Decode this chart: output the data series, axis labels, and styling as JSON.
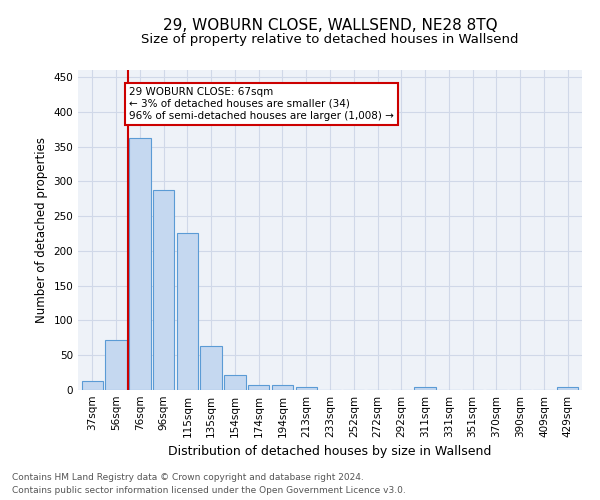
{
  "title": "29, WOBURN CLOSE, WALLSEND, NE28 8TQ",
  "subtitle": "Size of property relative to detached houses in Wallsend",
  "xlabel": "Distribution of detached houses by size in Wallsend",
  "ylabel": "Number of detached properties",
  "footnote1": "Contains HM Land Registry data © Crown copyright and database right 2024.",
  "footnote2": "Contains public sector information licensed under the Open Government Licence v3.0.",
  "bar_labels": [
    "37sqm",
    "56sqm",
    "76sqm",
    "96sqm",
    "115sqm",
    "135sqm",
    "154sqm",
    "174sqm",
    "194sqm",
    "213sqm",
    "233sqm",
    "252sqm",
    "272sqm",
    "292sqm",
    "311sqm",
    "331sqm",
    "351sqm",
    "370sqm",
    "390sqm",
    "409sqm",
    "429sqm"
  ],
  "bar_values": [
    13,
    72,
    362,
    287,
    225,
    63,
    22,
    7,
    7,
    5,
    0,
    0,
    0,
    0,
    5,
    0,
    0,
    0,
    0,
    0,
    5
  ],
  "bar_color": "#c5d8f0",
  "bar_edge_color": "#5b9bd5",
  "vline_color": "#cc0000",
  "annotation_text": "29 WOBURN CLOSE: 67sqm\n← 3% of detached houses are smaller (34)\n96% of semi-detached houses are larger (1,008) →",
  "annotation_box_color": "#ffffff",
  "annotation_box_edge": "#cc0000",
  "ylim": [
    0,
    460
  ],
  "yticks": [
    0,
    50,
    100,
    150,
    200,
    250,
    300,
    350,
    400,
    450
  ],
  "grid_color": "#d0d8e8",
  "bg_color": "#eef2f8",
  "title_fontsize": 11,
  "subtitle_fontsize": 9.5,
  "axis_label_fontsize": 8.5,
  "tick_fontsize": 7.5,
  "footnote_fontsize": 6.5
}
